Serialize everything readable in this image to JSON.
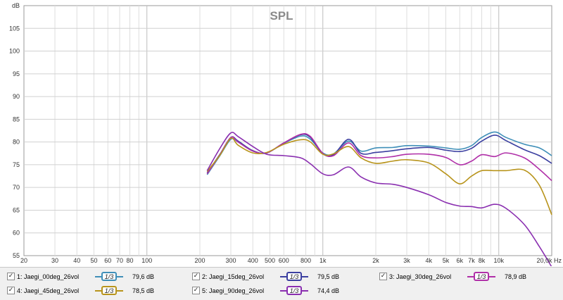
{
  "chart_data": {
    "type": "line",
    "title": "SPL",
    "ylabel": "dB",
    "xlabel": "Hz",
    "xscale": "log",
    "xlim": [
      20,
      20000
    ],
    "ylim": [
      55,
      110
    ],
    "grid": true,
    "x_tick_labels": [
      {
        "value": 20,
        "label": "20"
      },
      {
        "value": 30,
        "label": "30"
      },
      {
        "value": 40,
        "label": "40"
      },
      {
        "value": 50,
        "label": "50"
      },
      {
        "value": 60,
        "label": "60"
      },
      {
        "value": 70,
        "label": "70"
      },
      {
        "value": 80,
        "label": "80"
      },
      {
        "value": 100,
        "label": "100"
      },
      {
        "value": 200,
        "label": "200"
      },
      {
        "value": 300,
        "label": "300"
      },
      {
        "value": 400,
        "label": "400"
      },
      {
        "value": 500,
        "label": "500"
      },
      {
        "value": 600,
        "label": "600"
      },
      {
        "value": 800,
        "label": "800"
      },
      {
        "value": 1000,
        "label": "1k"
      },
      {
        "value": 2000,
        "label": "2k"
      },
      {
        "value": 3000,
        "label": "3k"
      },
      {
        "value": 4000,
        "label": "4k"
      },
      {
        "value": 5000,
        "label": "5k"
      },
      {
        "value": 6000,
        "label": "6k"
      },
      {
        "value": 7000,
        "label": "7k"
      },
      {
        "value": 8000,
        "label": "8k"
      },
      {
        "value": 10000,
        "label": "10k"
      },
      {
        "value": 20000,
        "label": "20,0k Hz"
      }
    ],
    "y_tick_labels": [
      {
        "value": 55,
        "label": "55"
      },
      {
        "value": 60,
        "label": "60"
      },
      {
        "value": 65,
        "label": "65"
      },
      {
        "value": 70,
        "label": "70"
      },
      {
        "value": 75,
        "label": "75"
      },
      {
        "value": 80,
        "label": "80"
      },
      {
        "value": 85,
        "label": "85"
      },
      {
        "value": 90,
        "label": "90"
      },
      {
        "value": 95,
        "label": "95"
      },
      {
        "value": 100,
        "label": "100"
      },
      {
        "value": 105,
        "label": "105"
      },
      {
        "value": 110,
        "label": "dB"
      }
    ],
    "x": [
      220,
      260,
      300,
      330,
      400,
      480,
      600,
      750,
      850,
      1000,
      1150,
      1400,
      1650,
      2000,
      2500,
      3000,
      4000,
      5000,
      6000,
      7000,
      8000,
      9500,
      11000,
      14000,
      17000,
      20000
    ],
    "series": [
      {
        "name": "1: Jaegi_00deg_26vol",
        "color": "#3f8fb8",
        "values": [
          72.8,
          77.0,
          80.6,
          80.0,
          78.0,
          77.6,
          79.7,
          81.3,
          80.6,
          77.6,
          77.4,
          80.2,
          78.0,
          78.7,
          78.8,
          79.2,
          79.1,
          78.7,
          78.4,
          79.2,
          81.0,
          82.2,
          81.0,
          79.5,
          78.7,
          77.0
        ]
      },
      {
        "name": "2: Jaegi_15deg_26vol",
        "color": "#3b3fa0",
        "values": [
          73.2,
          77.3,
          81.0,
          80.2,
          78.1,
          77.6,
          79.8,
          81.6,
          81.0,
          77.4,
          77.2,
          80.6,
          77.5,
          77.7,
          78.1,
          78.5,
          78.8,
          78.2,
          77.9,
          78.6,
          80.2,
          81.5,
          80.3,
          78.3,
          77.0,
          75.3
        ]
      },
      {
        "name": "3: Jaegi_30deg_26vol",
        "color": "#b02fa8",
        "values": [
          73.0,
          77.2,
          81.0,
          80.0,
          78.0,
          77.6,
          79.8,
          81.7,
          81.2,
          77.5,
          77.0,
          79.8,
          77.0,
          76.5,
          76.8,
          77.3,
          77.3,
          76.6,
          75.0,
          75.8,
          77.2,
          76.8,
          77.6,
          76.5,
          74.0,
          71.5
        ]
      },
      {
        "name": "4: Jaegi_45deg_26vol",
        "color": "#b8941c",
        "values": [
          73.5,
          77.1,
          80.8,
          79.3,
          77.6,
          77.7,
          79.5,
          80.5,
          80.0,
          77.3,
          77.4,
          79.0,
          76.5,
          75.3,
          75.8,
          76.1,
          75.4,
          73.0,
          70.8,
          72.5,
          73.7,
          73.7,
          73.7,
          73.8,
          70.5,
          64.0
        ]
      },
      {
        "name": "5: Jaegi_90deg_26vol",
        "color": "#8a2fb0",
        "values": [
          73.7,
          78.6,
          82.0,
          81.2,
          79.0,
          77.3,
          77.0,
          76.5,
          75.2,
          73.0,
          72.8,
          74.5,
          72.3,
          71.0,
          70.7,
          70.0,
          68.4,
          66.7,
          65.9,
          65.8,
          65.5,
          66.3,
          65.4,
          61.8,
          57.0,
          52.5
        ]
      }
    ]
  },
  "legend": [
    {
      "check": "✓",
      "name": "1: Jaegi_00deg_26vol",
      "smoothing": "1/3",
      "value": "79,6 dB",
      "color": "#3f8fb8"
    },
    {
      "check": "✓",
      "name": "2: Jaegi_15deg_26vol",
      "smoothing": "1/3",
      "value": "79,5 dB",
      "color": "#3b3fa0"
    },
    {
      "check": "✓",
      "name": "3: Jaegi_30deg_26vol",
      "smoothing": "1/3",
      "value": "78,9 dB",
      "color": "#b02fa8"
    },
    {
      "check": "✓",
      "name": "4: Jaegi_45deg_26vol",
      "smoothing": "1/3",
      "value": "78,5 dB",
      "color": "#b8941c"
    },
    {
      "check": "✓",
      "name": "5: Jaegi_90deg_26vol",
      "smoothing": "1/3",
      "value": "74,4 dB",
      "color": "#8a2fb0"
    }
  ]
}
